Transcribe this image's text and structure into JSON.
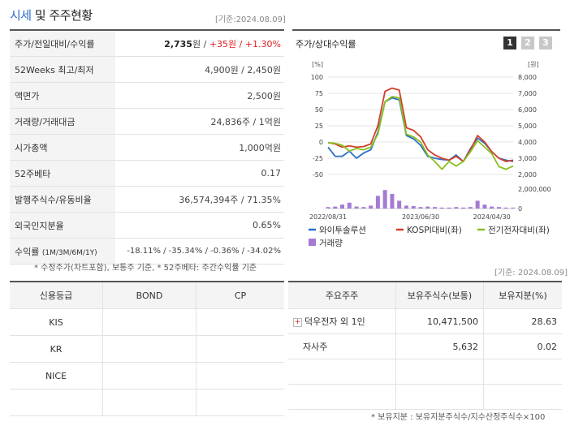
{
  "header": {
    "title_main": "시세",
    "title_sub": " 및 주주현황",
    "date_label": "[기준:2024.08.09]"
  },
  "price_table": [
    {
      "label": "주가/전일대비/수익률",
      "value_bold": "2,735",
      "value_rest": "원 / ",
      "value_red": "+35원 / +1.30%"
    },
    {
      "label": "52Weeks 최고/최저",
      "value": "4,900원 / 2,450원"
    },
    {
      "label": "액면가",
      "value": "2,500원"
    },
    {
      "label": "거래량/거래대금",
      "value": "24,836주 / 1억원"
    },
    {
      "label": "시가총액",
      "value": "1,000억원"
    },
    {
      "label": "52주베타",
      "value": "0.17"
    },
    {
      "label": "발행주식수/유동비율",
      "value": "36,574,394주 / 71.35%"
    },
    {
      "label": "외국인지분율",
      "value": "0.65%"
    },
    {
      "label": "수익률",
      "label_small": "(1M/3M/6M/1Y)",
      "value_blue": "-18.11% / -35.34% / -0.36% / -34.02%"
    }
  ],
  "note_left": "* 수정주가(차트포함), 보통주 기준, * 52주베타: 주간수익률 기준",
  "chart": {
    "title": "주가/상대수익률",
    "buttons": [
      "1",
      "2",
      "3"
    ],
    "active_button": "1",
    "left_unit": "[%]",
    "right_unit": "[원]",
    "left_ticks": [
      "100",
      "75",
      "50",
      "25",
      "0",
      "-25",
      "-50"
    ],
    "right_ticks": [
      "8,000",
      "7,000",
      "6,000",
      "5,000",
      "4,000",
      "3,000",
      "2,000"
    ],
    "volume_tick_top": "2,000,000",
    "volume_tick_bottom": "0",
    "x_ticks": [
      "2022/08/31",
      "2023/06/30",
      "2024/04/30"
    ],
    "legend": [
      {
        "name": "와이투솔루션",
        "color": "#2a6fc6",
        "type": "line"
      },
      {
        "name": "KOSPI대비(좌)",
        "color": "#d2402a",
        "type": "line"
      },
      {
        "name": "전기전자대비(좌)",
        "color": "#88c020",
        "type": "line"
      },
      {
        "name": "거래량",
        "color": "#a57ad3",
        "type": "bar"
      }
    ]
  },
  "chart_data": {
    "type": "line",
    "ylim_left": [
      -50,
      100
    ],
    "ylim_right": [
      2000,
      8000
    ],
    "volume_ylim": [
      0,
      2000000
    ],
    "series": [
      {
        "name": "와이투솔루션",
        "values": [
          -8,
          -22,
          -22,
          -14,
          -25,
          -17,
          -12,
          15,
          62,
          68,
          65,
          10,
          5,
          -5,
          -22,
          -25,
          -27,
          -28,
          -20,
          -30,
          -10,
          6,
          -2,
          -15,
          -25,
          -28,
          -30
        ]
      },
      {
        "name": "KOSPI대비(좌)",
        "values": [
          -1,
          -3,
          -8,
          -6,
          -8,
          -7,
          -3,
          25,
          78,
          83,
          80,
          22,
          18,
          8,
          -12,
          -20,
          -25,
          -28,
          -22,
          -30,
          -12,
          10,
          0,
          -15,
          -25,
          -30,
          -28
        ]
      },
      {
        "name": "전기전자대비(좌)",
        "values": [
          -1,
          -2,
          -5,
          -14,
          -10,
          -12,
          -8,
          12,
          62,
          70,
          68,
          12,
          8,
          0,
          -20,
          -30,
          -42,
          -30,
          -37,
          -30,
          -15,
          2,
          -8,
          -18,
          -38,
          -42,
          -37
        ]
      }
    ],
    "volume": [
      150000,
      200000,
      400000,
      600000,
      200000,
      150000,
      300000,
      1300000,
      1900000,
      1500000,
      800000,
      300000,
      250000,
      150000,
      200000,
      150000,
      100000,
      100000,
      150000,
      100000,
      150000,
      800000,
      400000,
      200000,
      150000,
      100000,
      100000
    ]
  },
  "date_label2": "[기준: 2024.08.09]",
  "grade_table": {
    "headers": [
      "신용등급",
      "BOND",
      "CP"
    ],
    "rows": [
      [
        "KIS",
        "",
        ""
      ],
      [
        "KR",
        "",
        ""
      ],
      [
        "NICE",
        "",
        ""
      ],
      [
        "",
        "",
        ""
      ]
    ]
  },
  "holders_table": {
    "headers": [
      "주요주주",
      "보유주식수(보통)",
      "보유지분(%)"
    ],
    "rows": [
      {
        "name": "덕우전자 외 1인",
        "shares": "10,471,500",
        "pct": "28.63",
        "expand": "+"
      },
      {
        "name": "자사주",
        "shares": "5,632",
        "pct": "0.02"
      }
    ]
  },
  "note_right": "* 보유지분 : 보유지분주식수/지수산정주식수×100"
}
